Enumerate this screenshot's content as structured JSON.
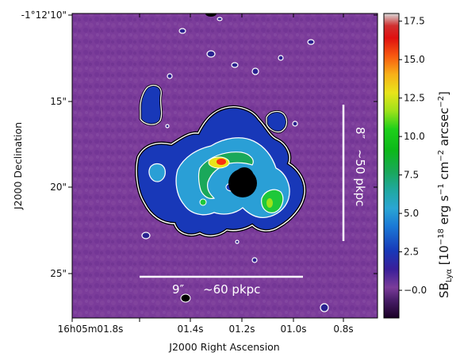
{
  "chart_data": {
    "type": "heatmap",
    "title": "",
    "xlabel": "J2000 Right Ascension",
    "ylabel": "J2000 Declination",
    "x_tick_labels": [
      "16h05m01.8s",
      "01.4s",
      "01.2s",
      "01.0s",
      "0.8s"
    ],
    "y_tick_labels": [
      "-1°12'10\"",
      "15\"",
      "20\"",
      "25\""
    ],
    "colorbar": {
      "label_main": "SB",
      "label_sub": "Lyα",
      "label_units": " [10",
      "label_exp1": "−18",
      "label_rest1": " erg s",
      "label_exp2": "−1",
      "label_rest2": " cm",
      "label_exp3": "−2",
      "label_rest3": " arcsec",
      "label_exp4": "−2",
      "label_close": "]",
      "range": [
        -1.8,
        18.0
      ],
      "ticks": [
        -0.0,
        2.5,
        5.0,
        7.5,
        10.0,
        12.5,
        15.0,
        17.5
      ],
      "tick_labels": [
        "−0.0",
        "2.5",
        "5.0",
        "7.5",
        "10.0",
        "12.5",
        "15.0",
        "17.5"
      ],
      "colormap": "nipy_spectral-like"
    },
    "annotations": {
      "horizontal_scale_angular": "9″",
      "horizontal_scale_physical": "~60 pkpc",
      "vertical_scale_angular": "8″",
      "vertical_scale_physical": "~50 pkpc"
    },
    "colors": {
      "background": "#7b3c9a",
      "mask": "#000000",
      "contour": "#ffffff"
    }
  }
}
